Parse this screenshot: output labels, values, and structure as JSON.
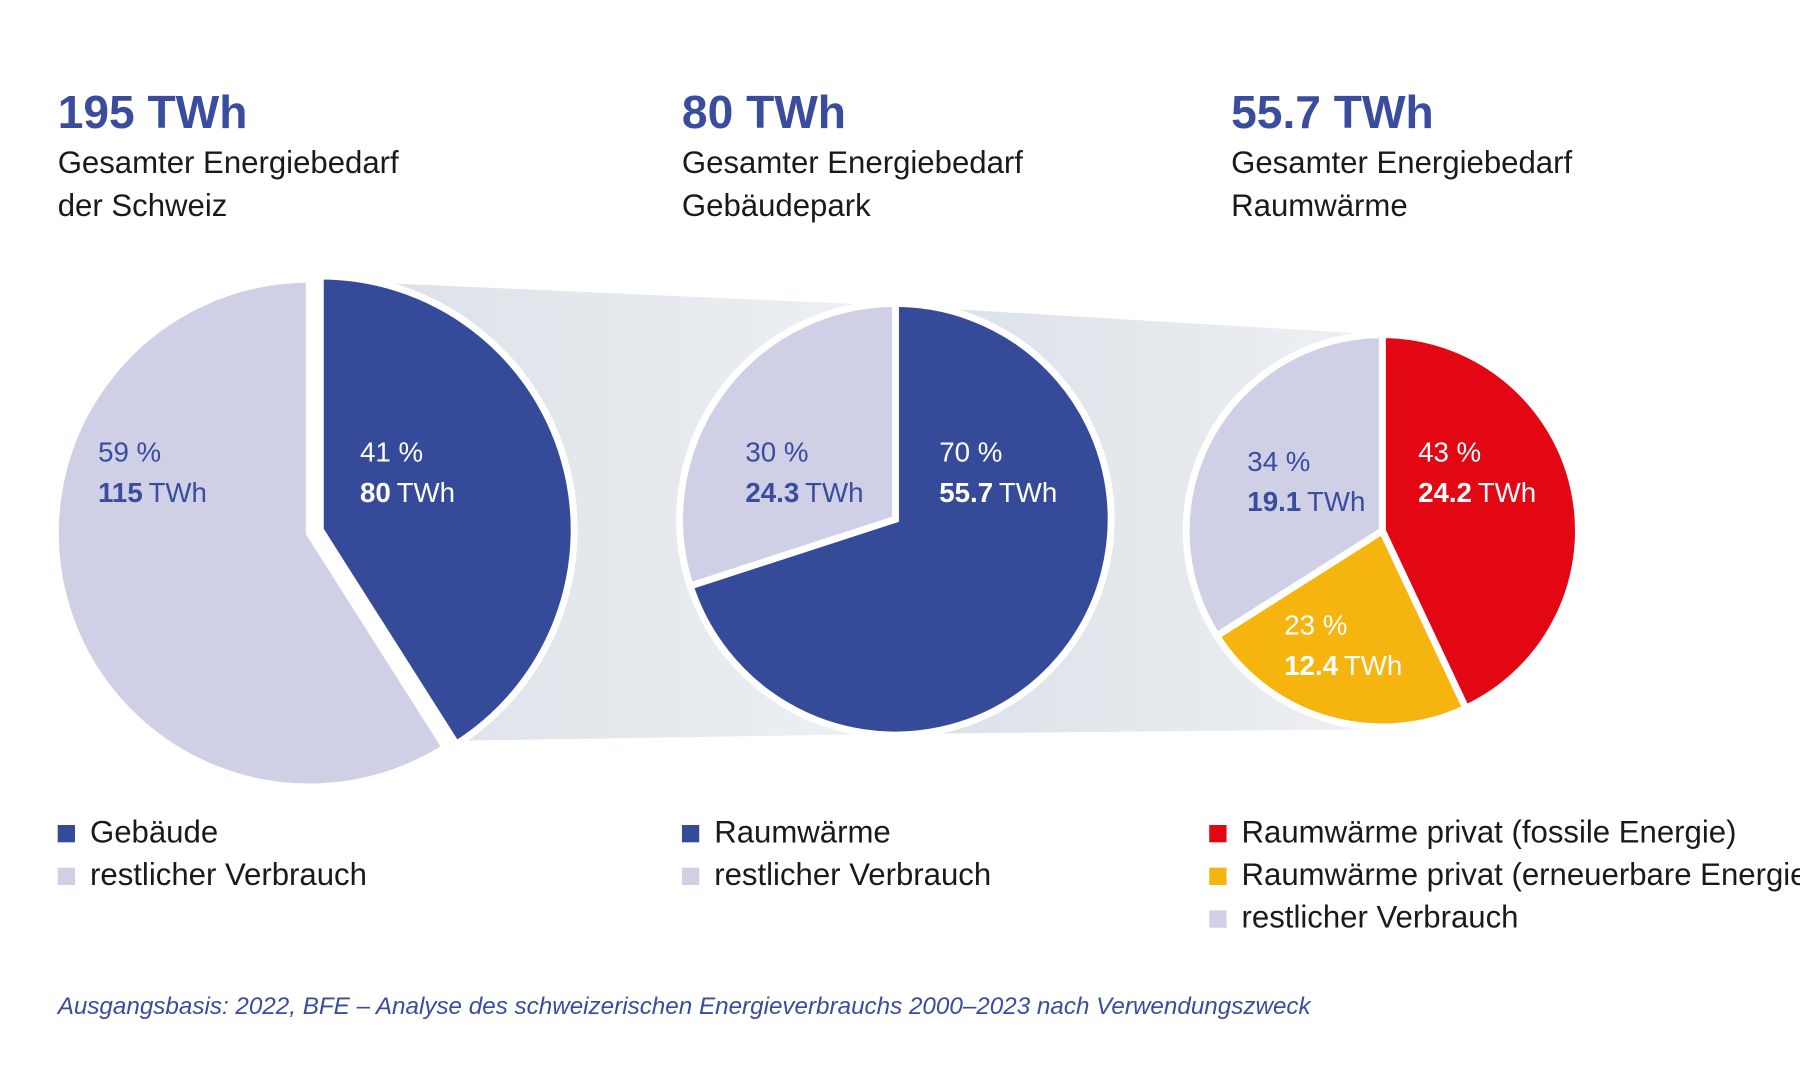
{
  "colors": {
    "blue": "#364a9a",
    "light": "#cfcfe5",
    "red": "#e30613",
    "yellow": "#f6b40e",
    "band": "#dfe5ea"
  },
  "chart_data": [
    {
      "type": "pie",
      "total": "195 TWh",
      "subtitle": [
        "Gesamter Energiebedarf",
        "der Schweiz"
      ],
      "slices": [
        {
          "name": "Gebäude",
          "pct": 41,
          "pct_label": "41 %",
          "value": "80",
          "unit": "TWh",
          "color": "#364a9a",
          "label_color": "#ffffff"
        },
        {
          "name": "restlicher Verbrauch",
          "pct": 59,
          "pct_label": "59 %",
          "value": "115",
          "unit": "TWh",
          "color": "#cfcfe5",
          "label_color": "#3a4c9e"
        }
      ]
    },
    {
      "type": "pie",
      "total": "80 TWh",
      "subtitle": [
        "Gesamter Energiebedarf",
        "Gebäudepark"
      ],
      "slices": [
        {
          "name": "Raumwärme",
          "pct": 70,
          "pct_label": "70 %",
          "value": "55.7",
          "unit": "TWh",
          "color": "#364a9a",
          "label_color": "#ffffff"
        },
        {
          "name": "restlicher Verbrauch",
          "pct": 30,
          "pct_label": "30 %",
          "value": "24.3",
          "unit": "TWh",
          "color": "#cfcfe5",
          "label_color": "#3a4c9e"
        }
      ]
    },
    {
      "type": "pie",
      "total": "55.7 TWh",
      "subtitle": [
        "Gesamter Energiebedarf",
        "Raumwärme"
      ],
      "slices": [
        {
          "name": "Raumwärme privat (fossile Energie)",
          "pct": 43,
          "pct_label": "43 %",
          "value": "24.2",
          "unit": "TWh",
          "color": "#e30613",
          "label_color": "#ffffff"
        },
        {
          "name": "Raumwärme privat (erneuerbare Energie)",
          "pct": 23,
          "pct_label": "23 %",
          "value": "12.4",
          "unit": "TWh",
          "color": "#f6b40e",
          "label_color": "#ffffff"
        },
        {
          "name": "restlicher Verbrauch",
          "pct": 34,
          "pct_label": "34 %",
          "value": "19.1",
          "unit": "TWh",
          "color": "#cfcfe5",
          "label_color": "#3a4c9e"
        }
      ]
    }
  ],
  "source": "Ausgangsbasis: 2022, BFE – Analyse des schweizerischen Energieverbrauchs 2000–2023 nach Verwendungszweck"
}
